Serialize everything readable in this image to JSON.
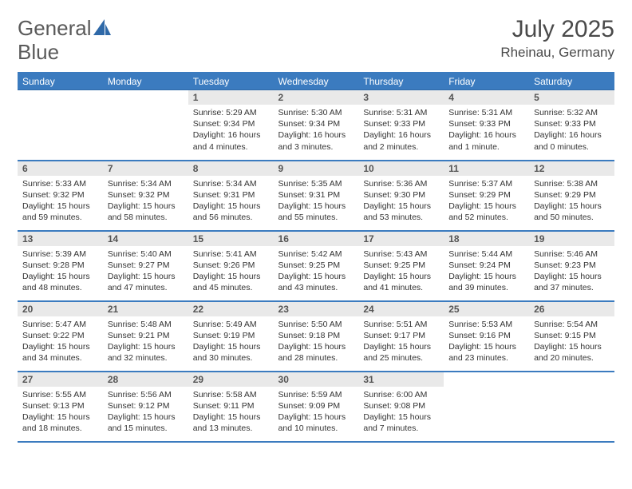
{
  "brand": {
    "part1": "General",
    "part2": "Blue"
  },
  "title": {
    "month": "July 2025",
    "location": "Rheinau, Germany"
  },
  "colors": {
    "header_bg": "#3b7bbf",
    "header_text": "#ffffff",
    "daynum_bg": "#e9e9e9",
    "border": "#3b7bbf",
    "logo_blue": "#2f69a8"
  },
  "weekdays": [
    "Sunday",
    "Monday",
    "Tuesday",
    "Wednesday",
    "Thursday",
    "Friday",
    "Saturday"
  ],
  "weeks": [
    [
      null,
      null,
      {
        "n": "1",
        "sr": "5:29 AM",
        "ss": "9:34 PM",
        "dl": "16 hours and 4 minutes."
      },
      {
        "n": "2",
        "sr": "5:30 AM",
        "ss": "9:34 PM",
        "dl": "16 hours and 3 minutes."
      },
      {
        "n": "3",
        "sr": "5:31 AM",
        "ss": "9:33 PM",
        "dl": "16 hours and 2 minutes."
      },
      {
        "n": "4",
        "sr": "5:31 AM",
        "ss": "9:33 PM",
        "dl": "16 hours and 1 minute."
      },
      {
        "n": "5",
        "sr": "5:32 AM",
        "ss": "9:33 PM",
        "dl": "16 hours and 0 minutes."
      }
    ],
    [
      {
        "n": "6",
        "sr": "5:33 AM",
        "ss": "9:32 PM",
        "dl": "15 hours and 59 minutes."
      },
      {
        "n": "7",
        "sr": "5:34 AM",
        "ss": "9:32 PM",
        "dl": "15 hours and 58 minutes."
      },
      {
        "n": "8",
        "sr": "5:34 AM",
        "ss": "9:31 PM",
        "dl": "15 hours and 56 minutes."
      },
      {
        "n": "9",
        "sr": "5:35 AM",
        "ss": "9:31 PM",
        "dl": "15 hours and 55 minutes."
      },
      {
        "n": "10",
        "sr": "5:36 AM",
        "ss": "9:30 PM",
        "dl": "15 hours and 53 minutes."
      },
      {
        "n": "11",
        "sr": "5:37 AM",
        "ss": "9:29 PM",
        "dl": "15 hours and 52 minutes."
      },
      {
        "n": "12",
        "sr": "5:38 AM",
        "ss": "9:29 PM",
        "dl": "15 hours and 50 minutes."
      }
    ],
    [
      {
        "n": "13",
        "sr": "5:39 AM",
        "ss": "9:28 PM",
        "dl": "15 hours and 48 minutes."
      },
      {
        "n": "14",
        "sr": "5:40 AM",
        "ss": "9:27 PM",
        "dl": "15 hours and 47 minutes."
      },
      {
        "n": "15",
        "sr": "5:41 AM",
        "ss": "9:26 PM",
        "dl": "15 hours and 45 minutes."
      },
      {
        "n": "16",
        "sr": "5:42 AM",
        "ss": "9:25 PM",
        "dl": "15 hours and 43 minutes."
      },
      {
        "n": "17",
        "sr": "5:43 AM",
        "ss": "9:25 PM",
        "dl": "15 hours and 41 minutes."
      },
      {
        "n": "18",
        "sr": "5:44 AM",
        "ss": "9:24 PM",
        "dl": "15 hours and 39 minutes."
      },
      {
        "n": "19",
        "sr": "5:46 AM",
        "ss": "9:23 PM",
        "dl": "15 hours and 37 minutes."
      }
    ],
    [
      {
        "n": "20",
        "sr": "5:47 AM",
        "ss": "9:22 PM",
        "dl": "15 hours and 34 minutes."
      },
      {
        "n": "21",
        "sr": "5:48 AM",
        "ss": "9:21 PM",
        "dl": "15 hours and 32 minutes."
      },
      {
        "n": "22",
        "sr": "5:49 AM",
        "ss": "9:19 PM",
        "dl": "15 hours and 30 minutes."
      },
      {
        "n": "23",
        "sr": "5:50 AM",
        "ss": "9:18 PM",
        "dl": "15 hours and 28 minutes."
      },
      {
        "n": "24",
        "sr": "5:51 AM",
        "ss": "9:17 PM",
        "dl": "15 hours and 25 minutes."
      },
      {
        "n": "25",
        "sr": "5:53 AM",
        "ss": "9:16 PM",
        "dl": "15 hours and 23 minutes."
      },
      {
        "n": "26",
        "sr": "5:54 AM",
        "ss": "9:15 PM",
        "dl": "15 hours and 20 minutes."
      }
    ],
    [
      {
        "n": "27",
        "sr": "5:55 AM",
        "ss": "9:13 PM",
        "dl": "15 hours and 18 minutes."
      },
      {
        "n": "28",
        "sr": "5:56 AM",
        "ss": "9:12 PM",
        "dl": "15 hours and 15 minutes."
      },
      {
        "n": "29",
        "sr": "5:58 AM",
        "ss": "9:11 PM",
        "dl": "15 hours and 13 minutes."
      },
      {
        "n": "30",
        "sr": "5:59 AM",
        "ss": "9:09 PM",
        "dl": "15 hours and 10 minutes."
      },
      {
        "n": "31",
        "sr": "6:00 AM",
        "ss": "9:08 PM",
        "dl": "15 hours and 7 minutes."
      },
      null,
      null
    ]
  ],
  "labels": {
    "sunrise": "Sunrise:",
    "sunset": "Sunset:",
    "daylight": "Daylight:"
  }
}
